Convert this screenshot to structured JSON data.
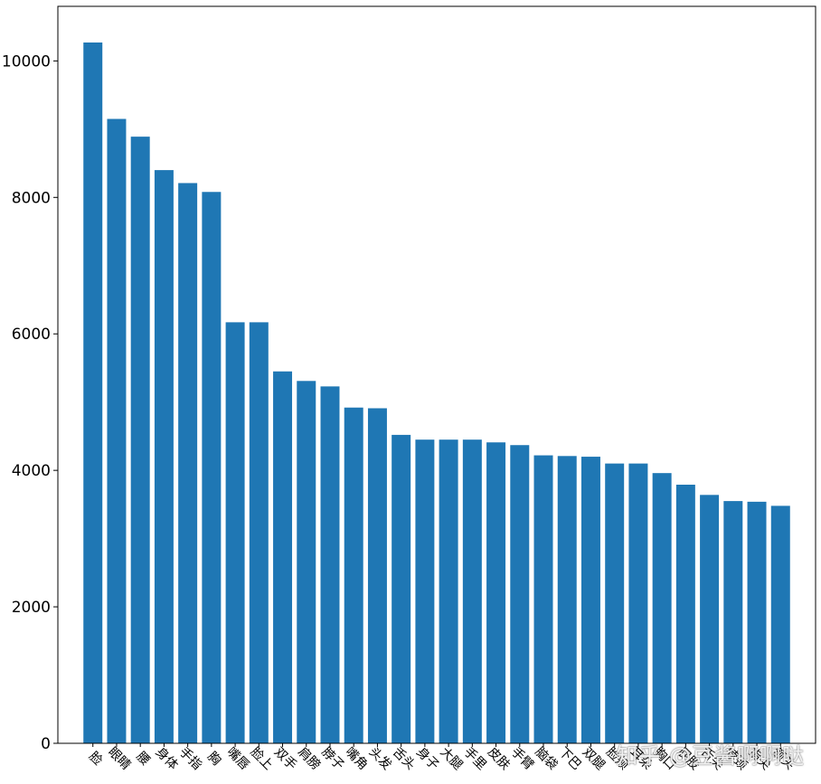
{
  "chart_data": {
    "type": "bar",
    "categories": [
      "脸",
      "眼睛",
      "腰",
      "身体",
      "手指",
      "胸",
      "嘴唇",
      "脸上",
      "双手",
      "肩膀",
      "脖子",
      "嘴角",
      "头发",
      "舌头",
      "身子",
      "大腿",
      "手里",
      "皮肤",
      "手臂",
      "脑袋",
      "下巴",
      "双腿",
      "脸颊",
      "耳朵",
      "胸口",
      "屁股",
      "舌尖",
      "脖颈",
      "指尖",
      "额头"
    ],
    "values": [
      10270,
      9150,
      8890,
      8400,
      8210,
      8080,
      6170,
      6170,
      5450,
      5310,
      5230,
      4920,
      4910,
      4520,
      4450,
      4450,
      4450,
      4410,
      4370,
      4220,
      4210,
      4200,
      4100,
      4100,
      3960,
      3790,
      3640,
      3550,
      3540,
      3480
    ],
    "title": "",
    "xlabel": "",
    "ylabel": "",
    "ylim": [
      0,
      10800
    ],
    "yticks": [
      0,
      2000,
      4000,
      6000,
      8000,
      10000
    ],
    "grid": false,
    "bar_color": "#1f77b4"
  },
  "watermark": "知乎 @豆酱啊啊哒"
}
